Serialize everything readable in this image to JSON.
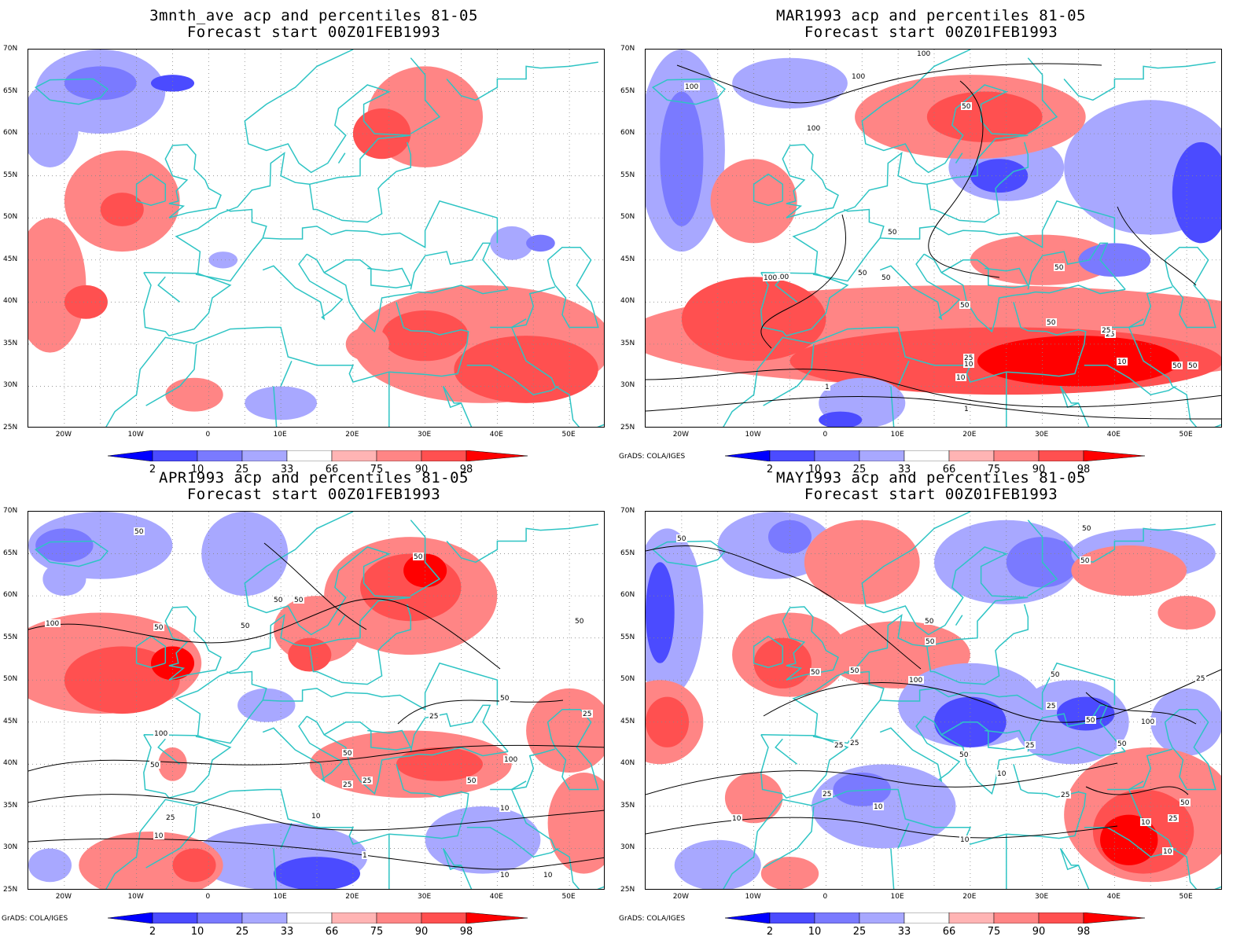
{
  "panels": [
    {
      "title1": "3mnth_ave acp and percentiles 81-05",
      "title2": "Forecast start 00Z01FEB1993",
      "credit": "",
      "contour_labels": []
    },
    {
      "title1": "MAR1993 acp and percentiles 81-05",
      "title2": "Forecast start 00Z01FEB1993",
      "credit": "GrADS: COLA/IGES",
      "contour_labels": [
        "100",
        "100",
        "100",
        "100",
        "50",
        "50",
        "50",
        "100",
        "100",
        "50",
        "50",
        "50",
        "50",
        "25",
        "25",
        "50",
        "10",
        "10",
        "1",
        "1",
        "10",
        "50",
        "25"
      ]
    },
    {
      "title1": "APR1993 acp and percentiles 81-05",
      "title2": "Forecast start 00Z01FEB1993",
      "credit": "GrADS: COLA/IGES",
      "contour_labels": [
        "50",
        "50",
        "50",
        "50",
        "100",
        "50",
        "50",
        "100",
        "50",
        "50",
        "25",
        "25",
        "50",
        "25",
        "50",
        "100",
        "25",
        "10",
        "10",
        "25",
        "10",
        "1",
        "10",
        "10",
        "50"
      ]
    },
    {
      "title1": "MAY1993 acp and percentiles 81-05",
      "title2": "Forecast start 00Z01FEB1993",
      "credit": "GrADS: COLA/IGES",
      "contour_labels": [
        "50",
        "50",
        "50",
        "50",
        "50",
        "50",
        "50",
        "100",
        "50",
        "25",
        "25",
        "25",
        "25",
        "25",
        "50",
        "10",
        "25",
        "10",
        "10",
        "25",
        "50",
        "10",
        "50",
        "100",
        "50",
        "25",
        "10",
        "10"
      ]
    }
  ],
  "lat_labels": [
    "70N",
    "65N",
    "60N",
    "55N",
    "50N",
    "45N",
    "40N",
    "35N",
    "30N",
    "25N"
  ],
  "lon_labels": [
    "20W",
    "10W",
    "0",
    "10E",
    "20E",
    "30E",
    "40E",
    "50E"
  ],
  "colorbar": {
    "labels": [
      "2",
      "10",
      "25",
      "33",
      "66",
      "75",
      "90",
      "98"
    ],
    "colors": [
      "#0000ff",
      "#4b4bff",
      "#7a7aff",
      "#a8a8ff",
      "#ffffff",
      "#ffb4b4",
      "#ff8585",
      "#ff5050",
      "#ff0000"
    ]
  },
  "colors": {
    "coastline": "#2ec4c4",
    "contour": "#000000"
  }
}
